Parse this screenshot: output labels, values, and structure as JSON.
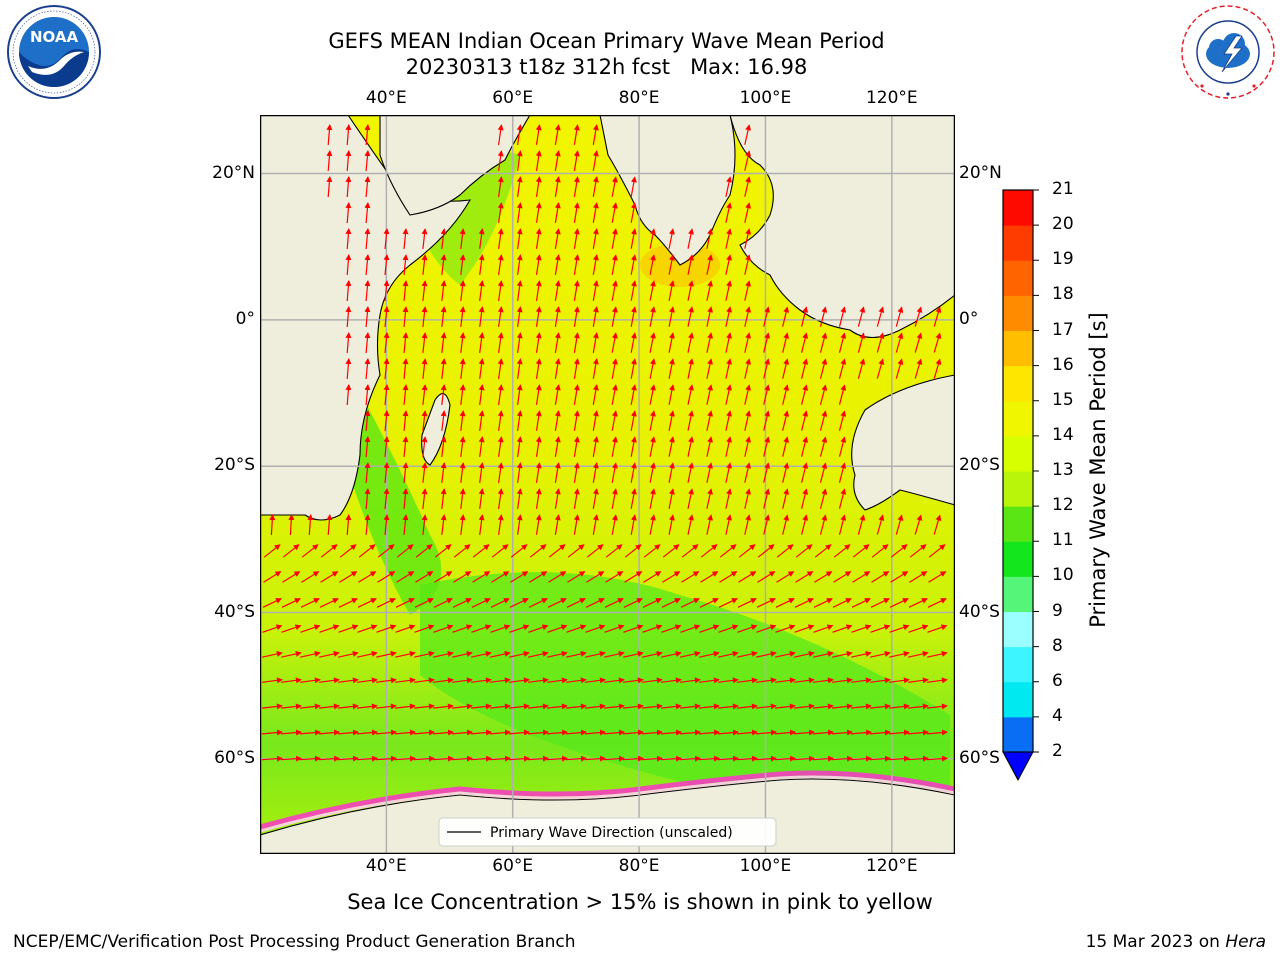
{
  "header": {
    "title_line1": "GEFS MEAN Indian Ocean Primary Wave Mean Period",
    "title_line2": "20230313 t18z 312h fcst   Max: 16.98"
  },
  "logos": {
    "left": {
      "name": "noaa-logo",
      "text": "NOAA",
      "ring_text": "NATIONAL OCEANIC AND ATMOSPHERIC ADMINISTRATION · U.S. DEPARTMENT OF COMMERCE"
    },
    "right": {
      "name": "national-weather-service-logo",
      "ring_text": "NATIONAL WEATHER SERVICE"
    }
  },
  "map": {
    "lon_ticks": [
      "40°E",
      "60°E",
      "80°E",
      "100°E",
      "120°E"
    ],
    "lat_ticks": [
      "20°N",
      "0°",
      "20°S",
      "40°S",
      "60°S"
    ],
    "lon_values": [
      40,
      60,
      80,
      100,
      120
    ],
    "lat_values": [
      20,
      0,
      -20,
      -40,
      -60
    ],
    "extent": {
      "lon_min": 20,
      "lon_max": 130,
      "lat_min": -73,
      "lat_max": 28
    },
    "legend_label": "Primary Wave Direction (unscaled)",
    "land_color": "#efeedd",
    "grid_color": "#b0b0b0",
    "arrow_color": "#ff0000"
  },
  "colorbar": {
    "label": "Primary Wave Mean Period [s]",
    "tick_labels": [
      "2",
      "4",
      "6",
      "8",
      "9",
      "10",
      "11",
      "12",
      "13",
      "14",
      "15",
      "16",
      "17",
      "18",
      "19",
      "20",
      "21"
    ],
    "colors": [
      "#0a6ef5",
      "#00e8f0",
      "#3cf5ff",
      "#9cffff",
      "#55f57a",
      "#14e61e",
      "#5ae614",
      "#b9f50a",
      "#d7ff00",
      "#f0f500",
      "#ffe600",
      "#ffbe00",
      "#ff8c00",
      "#ff6400",
      "#ff3c00",
      "#ff0a00"
    ],
    "extend_color": "#0000ff"
  },
  "annotation": "Sea Ice Concentration > 15% is shown in pink to yellow",
  "footer": {
    "left": "NCEP/EMC/Verification Post Processing Product Generation Branch",
    "right_date": "15 Mar 2023 on ",
    "right_host": "Hera"
  }
}
